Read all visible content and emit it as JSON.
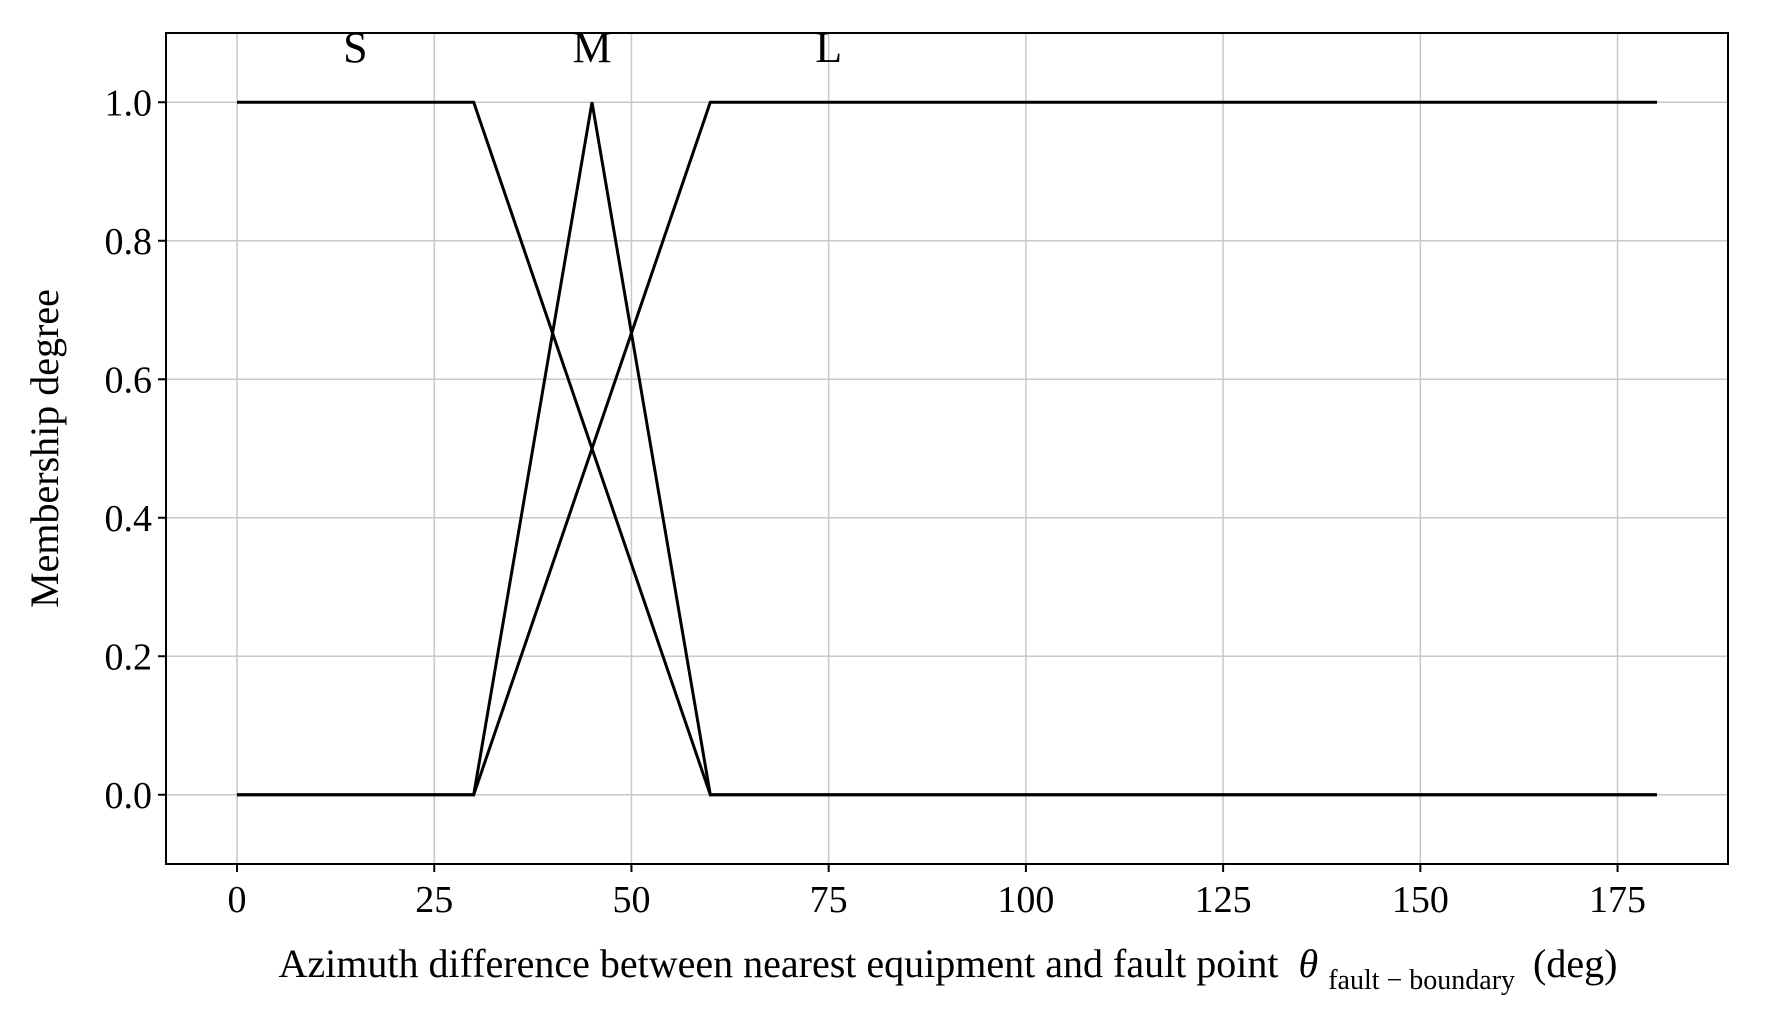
{
  "chart_data": {
    "type": "line",
    "xlabel": {
      "text": "Azimuth difference between nearest equipment and fault point",
      "symbol": "θ",
      "subscript": "fault − boundary",
      "unit": "(deg)"
    },
    "ylabel": "Membership degree",
    "xlim": [
      -9,
      189
    ],
    "ylim": [
      -0.1,
      1.1
    ],
    "xticks": [
      0,
      25,
      50,
      75,
      100,
      125,
      150,
      175
    ],
    "yticks": [
      0.0,
      0.2,
      0.4,
      0.6,
      0.8,
      1.0
    ],
    "ytick_labels": [
      "0.0",
      "0.2",
      "0.4",
      "0.6",
      "0.8",
      "1.0"
    ],
    "grid": true,
    "series": [
      {
        "name": "S",
        "x": [
          0,
          30,
          60,
          180
        ],
        "y": [
          1,
          1,
          0,
          0
        ],
        "color": "#000000"
      },
      {
        "name": "M",
        "x": [
          0,
          30,
          45,
          60,
          180
        ],
        "y": [
          0,
          0,
          1,
          0,
          0
        ],
        "color": "#000000"
      },
      {
        "name": "L",
        "x": [
          0,
          30,
          60,
          180
        ],
        "y": [
          0,
          0,
          1,
          1
        ],
        "color": "#000000"
      }
    ],
    "annotations": [
      {
        "text": "S",
        "x": 15,
        "y": 1.08
      },
      {
        "text": "M",
        "x": 45,
        "y": 1.08
      },
      {
        "text": "L",
        "x": 75,
        "y": 1.08
      }
    ]
  }
}
